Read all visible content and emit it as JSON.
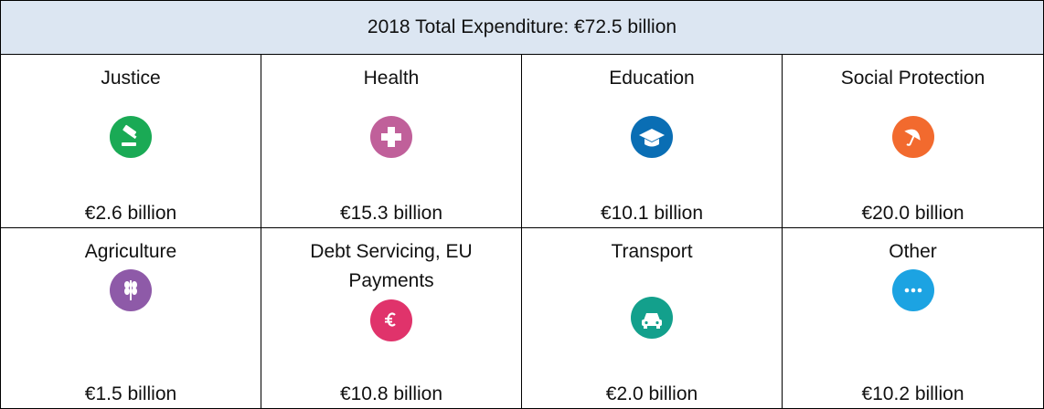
{
  "header": {
    "title": "2018 Total Expenditure: €72.5 billion"
  },
  "cells": [
    {
      "label": "Justice",
      "value": "€2.6 billion"
    },
    {
      "label": "Health",
      "value": "€15.3 billion"
    },
    {
      "label": "Education",
      "value": "€10.1 billion"
    },
    {
      "label": "Social Protection",
      "value": "€20.0 billion"
    },
    {
      "label": "Agriculture",
      "value": "€1.5 billion"
    },
    {
      "label": "Debt Servicing, EU Payments",
      "value": "€10.8 billion"
    },
    {
      "label": "Transport",
      "value": "€2.0 billion"
    },
    {
      "label": "Other",
      "value": "€10.2 billion"
    }
  ]
}
